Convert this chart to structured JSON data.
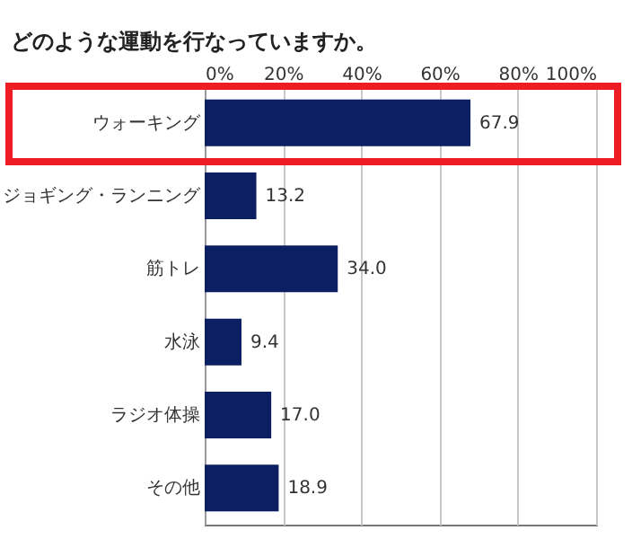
{
  "chart_data": {
    "type": "bar",
    "orientation": "horizontal",
    "title": "どのような運動を行なっていますか。",
    "categories": [
      "ウォーキング",
      "ジョギング・ランニング",
      "筋トレ",
      "水泳",
      "ラジオ体操",
      "その他"
    ],
    "values": [
      67.9,
      13.2,
      34.0,
      9.4,
      17.0,
      18.9
    ],
    "value_labels": [
      "67.9",
      "13.2",
      "34.0",
      "9.4",
      "17.0",
      "18.9"
    ],
    "color": "#0d1f63",
    "xlim": [
      0,
      100
    ],
    "xticks": [
      {
        "value": 0,
        "label": "0%"
      },
      {
        "value": 20,
        "label": "20%"
      },
      {
        "value": 40,
        "label": "40%"
      },
      {
        "value": 60,
        "label": "60%"
      },
      {
        "value": 80,
        "label": "80%"
      },
      {
        "value": 100,
        "label": "100%"
      }
    ],
    "grid": "x"
  }
}
